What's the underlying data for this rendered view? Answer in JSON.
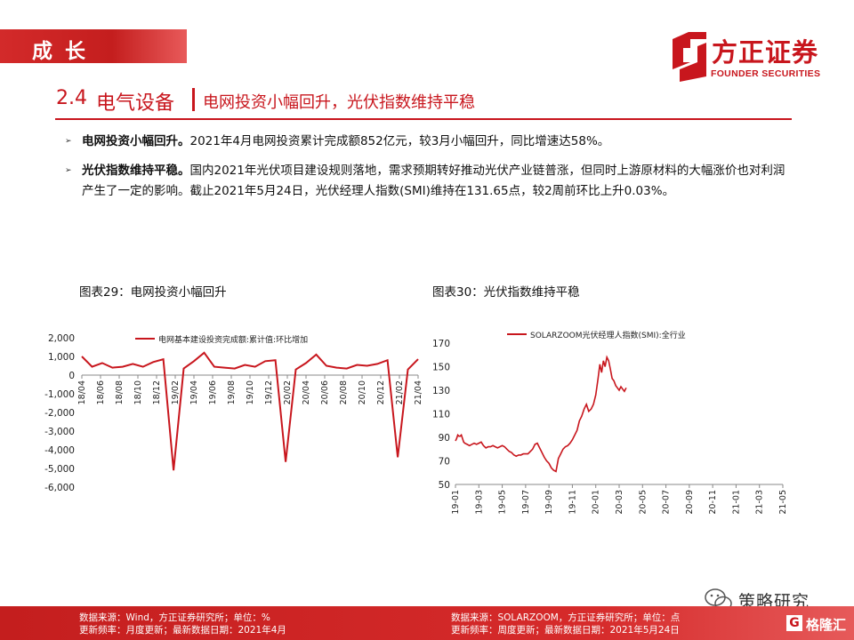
{
  "banner": {
    "text": "成长"
  },
  "logo": {
    "name_cn": "方正证券",
    "name_en": "FOUNDER SECURITIES"
  },
  "section": {
    "number": "2.4",
    "title": "电气设备",
    "subtitle": "电网投资小幅回升，光伏指数维持平稳"
  },
  "bullets": [
    {
      "lead": "电网投资小幅回升。",
      "text": "2021年4月电网投资累计完成额852亿元，较3月小幅回升，同比增速达58%。"
    },
    {
      "lead": "光伏指数维持平稳。",
      "text": "国内2021年光伏项目建设规则落地，需求预期转好推动光伏产业链普涨，但同时上游原材料的大幅涨价也对利润产生了一定的影响。截止2021年5月24日，光伏经理人指数(SMI)维持在131.65点，较2周前环比上升0.03%。"
    }
  ],
  "charts": [
    {
      "caption": "图表29：电网投资小幅回升",
      "source": "数据来源：Wind，方正证券研究所；单位：%",
      "update": "更新频率：月度更新；最新数据日期：2021年4月"
    },
    {
      "caption": "图表30：光伏指数维持平稳",
      "source": "数据来源：SOLARZOOM，方正证券研究所；单位：点",
      "update": "更新频率：周度更新；最新数据日期：2021年5月24日"
    }
  ],
  "chart_data": [
    {
      "type": "line",
      "title": "",
      "legend": "电网基本建设投资完成额:累计值:环比增加",
      "legend_position": "top",
      "ylim": [
        -6000,
        2000
      ],
      "yticks": [
        2000,
        1000,
        0,
        -1000,
        -2000,
        -3000,
        -4000,
        -5000,
        -6000
      ],
      "ytick_labels": [
        "2,000",
        "1,000",
        "0",
        "-1,000",
        "-2,000",
        "-3,000",
        "-4,000",
        "-5,000",
        "-6,000"
      ],
      "x_tick_labels": [
        "18/04",
        "18/06",
        "18/08",
        "18/10",
        "18/12",
        "19/02",
        "19/04",
        "19/06",
        "19/08",
        "19/10",
        "19/12",
        "20/02",
        "20/04",
        "20/06",
        "20/08",
        "20/10",
        "20/12",
        "21/02",
        "21/04"
      ],
      "color": "#c8161d",
      "values": [
        1000,
        450,
        650,
        400,
        450,
        600,
        450,
        700,
        850,
        -5100,
        350,
        750,
        1200,
        450,
        400,
        350,
        550,
        450,
        750,
        800,
        -4650,
        300,
        650,
        1100,
        500,
        400,
        350,
        550,
        500,
        600,
        800,
        -4400,
        300,
        850
      ]
    },
    {
      "type": "line",
      "title": "",
      "legend": "SOLARZOOM光伏经理人指数(SMI):全行业",
      "legend_position": "top",
      "ylim": [
        50,
        170
      ],
      "yticks": [
        50,
        70,
        90,
        110,
        130,
        150,
        170
      ],
      "x_tick_labels": [
        "19-01",
        "19-03",
        "19-05",
        "19-07",
        "19-09",
        "19-11",
        "20-01",
        "20-03",
        "20-05",
        "20-07",
        "20-09",
        "20-11",
        "21-01",
        "21-03",
        "21-05"
      ],
      "color": "#c8161d",
      "points": [
        [
          0,
          87
        ],
        [
          0.1,
          89
        ],
        [
          0.2,
          92
        ],
        [
          0.3,
          91
        ],
        [
          0.4,
          91
        ],
        [
          0.5,
          92
        ],
        [
          0.6,
          89
        ],
        [
          0.7,
          86
        ],
        [
          0.8,
          85
        ],
        [
          1.0,
          84
        ],
        [
          1.2,
          83
        ],
        [
          1.4,
          84
        ],
        [
          1.6,
          85
        ],
        [
          1.8,
          84
        ],
        [
          2.0,
          85
        ],
        [
          2.2,
          86
        ],
        [
          2.4,
          83
        ],
        [
          2.6,
          81
        ],
        [
          2.8,
          82
        ],
        [
          3.0,
          82
        ],
        [
          3.2,
          83
        ],
        [
          3.4,
          82
        ],
        [
          3.6,
          81
        ],
        [
          3.8,
          82
        ],
        [
          4.0,
          83
        ],
        [
          4.2,
          82
        ],
        [
          4.4,
          80
        ],
        [
          4.6,
          78
        ],
        [
          4.8,
          77
        ],
        [
          5.0,
          75
        ],
        [
          5.2,
          74
        ],
        [
          5.4,
          75
        ],
        [
          5.6,
          75
        ],
        [
          5.8,
          76
        ],
        [
          6.0,
          76
        ],
        [
          6.2,
          76
        ],
        [
          6.4,
          78
        ],
        [
          6.6,
          80
        ],
        [
          6.8,
          84
        ],
        [
          7.0,
          85
        ],
        [
          7.2,
          81
        ],
        [
          7.4,
          77
        ],
        [
          7.6,
          73
        ],
        [
          7.8,
          70
        ],
        [
          8.0,
          68
        ],
        [
          8.2,
          64
        ],
        [
          8.4,
          62
        ],
        [
          8.6,
          61
        ],
        [
          8.8,
          72
        ],
        [
          9.0,
          76
        ],
        [
          9.2,
          80
        ],
        [
          9.4,
          82
        ],
        [
          9.6,
          83
        ],
        [
          9.8,
          85
        ],
        [
          10.0,
          88
        ],
        [
          10.2,
          92
        ],
        [
          10.4,
          96
        ],
        [
          10.6,
          104
        ],
        [
          10.8,
          108
        ],
        [
          11.0,
          114
        ],
        [
          11.2,
          118
        ],
        [
          11.4,
          112
        ],
        [
          11.6,
          114
        ],
        [
          11.8,
          118
        ],
        [
          12.0,
          126
        ],
        [
          12.2,
          140
        ],
        [
          12.35,
          152
        ],
        [
          12.5,
          145
        ],
        [
          12.65,
          155
        ],
        [
          12.8,
          150
        ],
        [
          12.95,
          158
        ],
        [
          13.1,
          155
        ],
        [
          13.25,
          148
        ],
        [
          13.4,
          140
        ],
        [
          13.55,
          138
        ],
        [
          13.7,
          134
        ],
        [
          13.85,
          132
        ],
        [
          14.0,
          130
        ],
        [
          14.15,
          133
        ],
        [
          14.3,
          131
        ],
        [
          14.45,
          129
        ],
        [
          14.6,
          132
        ]
      ]
    }
  ],
  "watermark": {
    "text": "策略研究",
    "brand": "格隆汇",
    "brand_mark": "G"
  }
}
